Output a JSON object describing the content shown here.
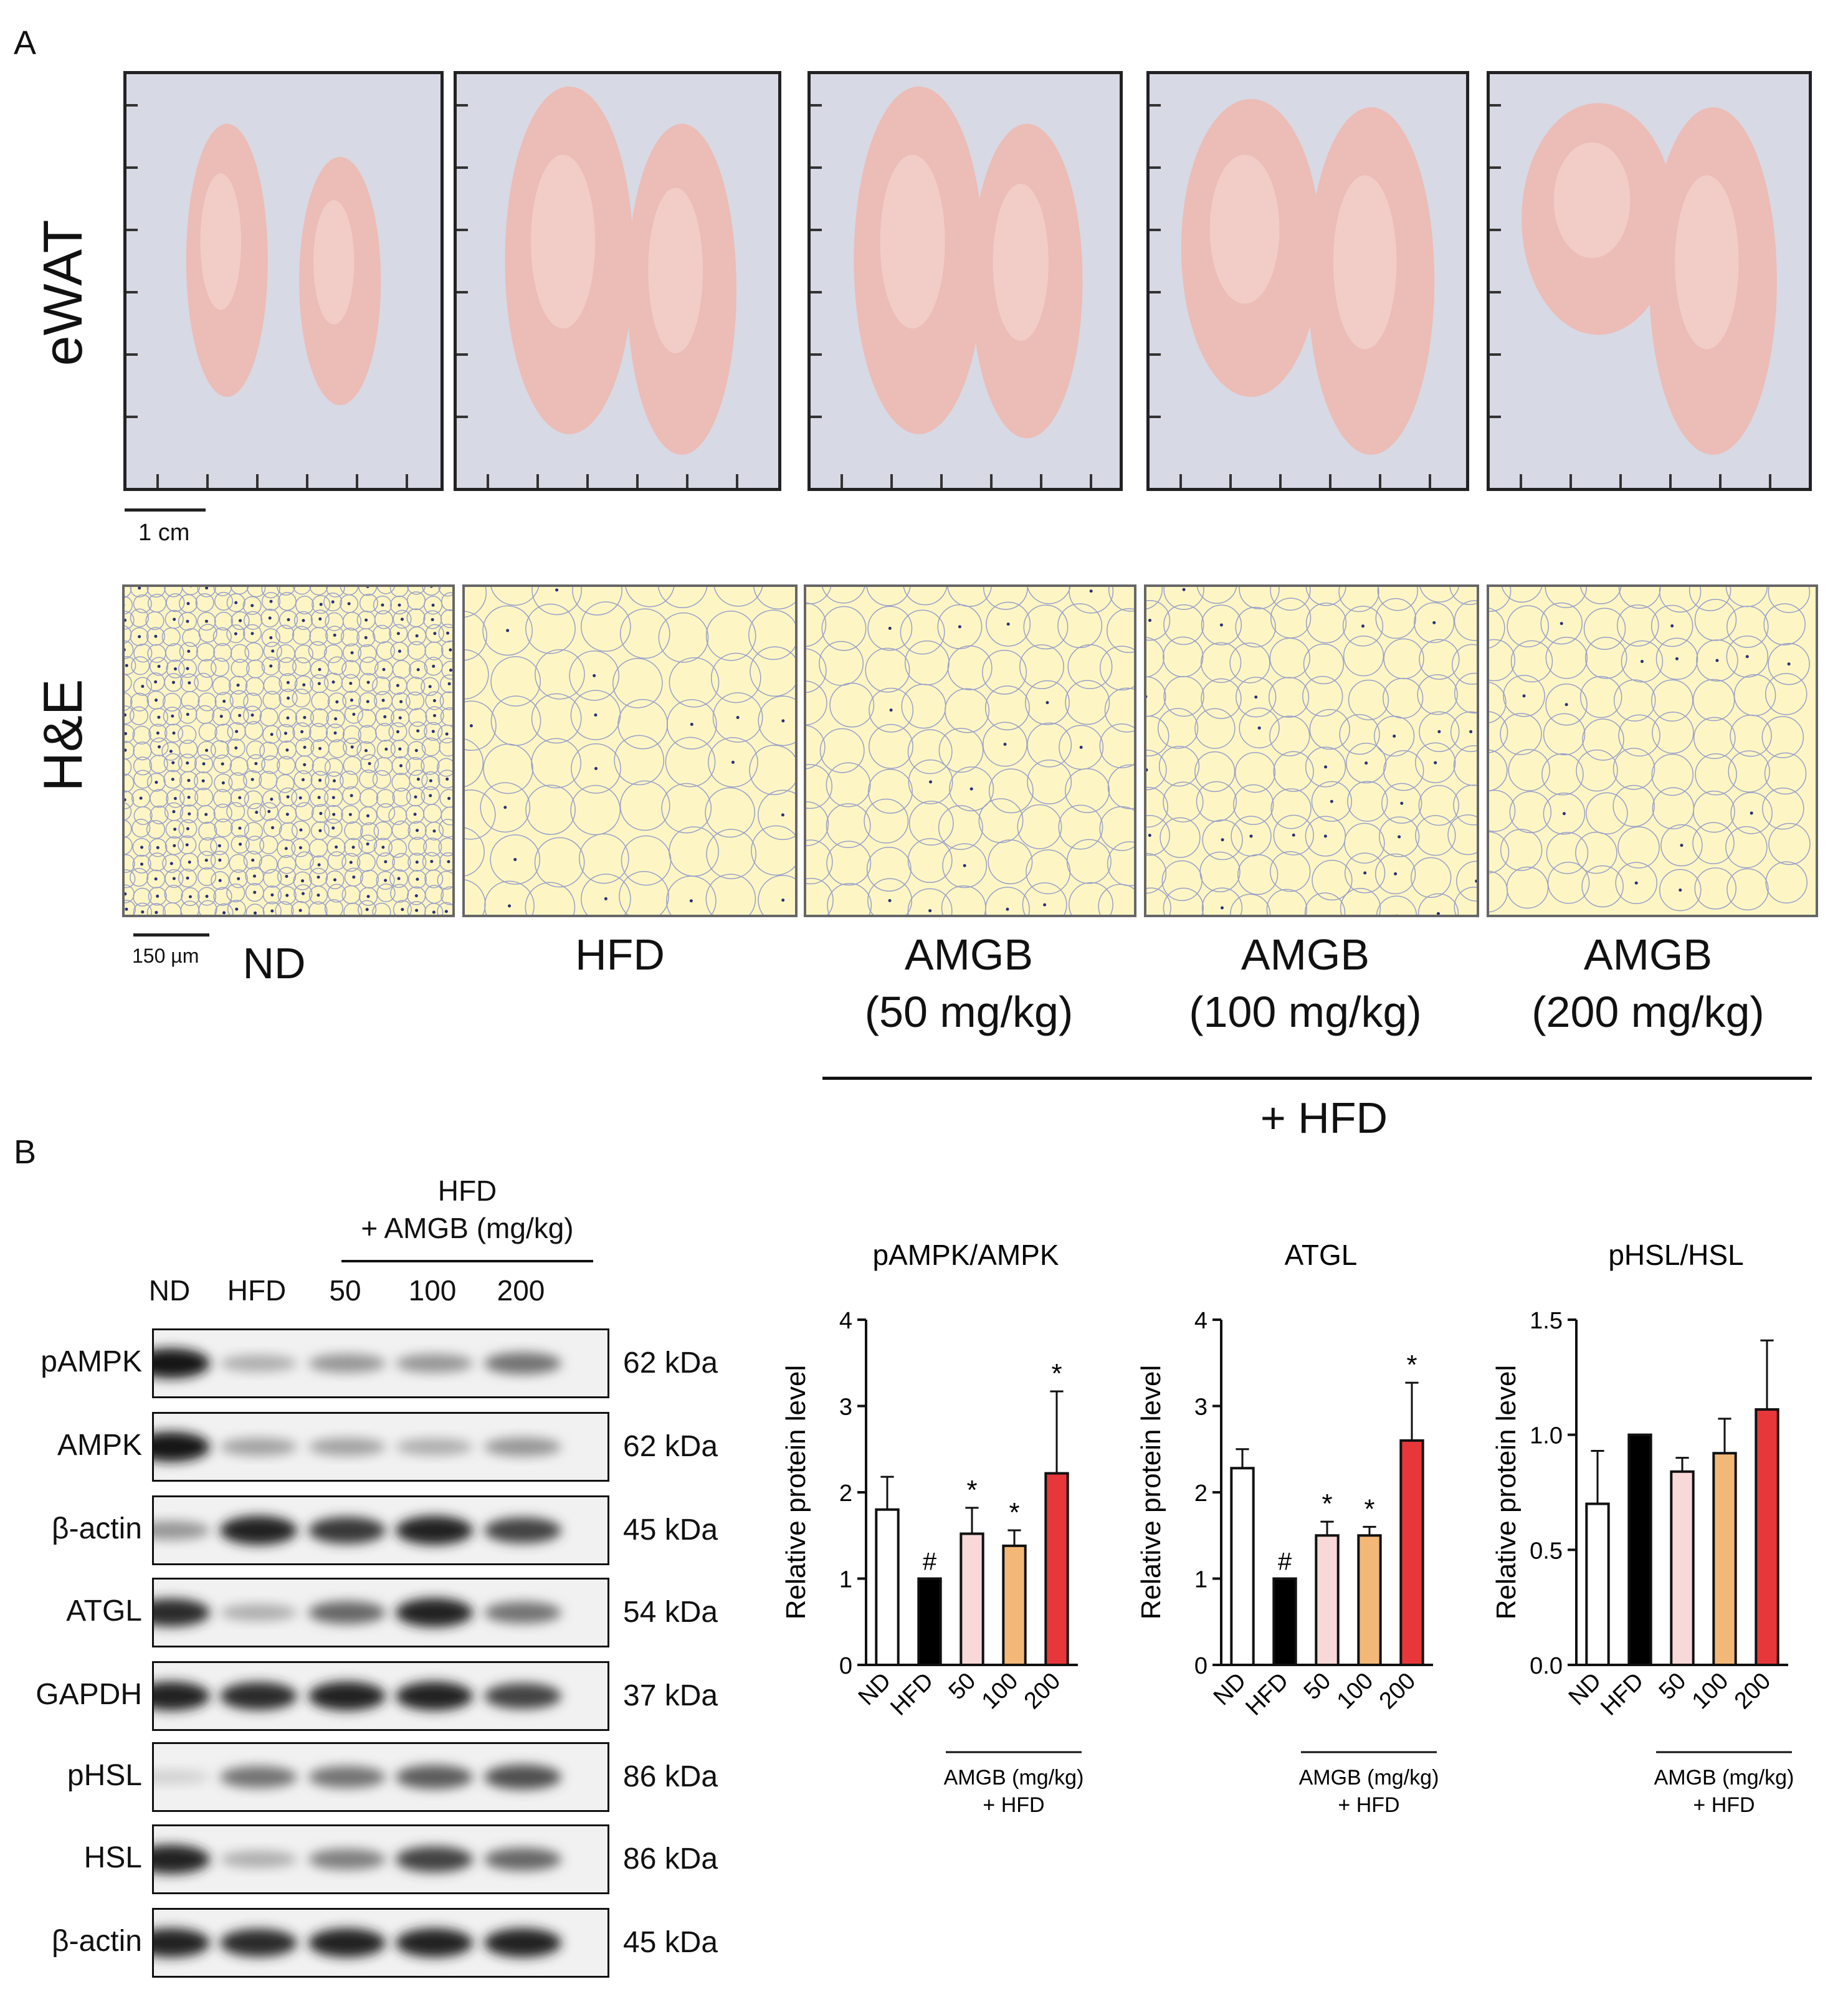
{
  "panel_a": {
    "letter": "A",
    "row_labels": {
      "top": "eWAT",
      "bottom": "H&E"
    },
    "scale_bar_photo": "1 cm",
    "scale_bar_histo": "150 µm",
    "groups": [
      "ND",
      "HFD",
      "AMGB\n(50 mg/kg)",
      "AMGB\n(100 mg/kg)",
      "AMGB\n(200 mg/kg)"
    ],
    "bracket_label": "+ HFD",
    "colors": {
      "tissue": "#ecbcb6",
      "tissue_highlight": "#f6d8d2",
      "photo_bg": "#d7d9e4",
      "histo_bg": "#fdf6c4",
      "nuclei": "#2a2f78"
    }
  },
  "panel_b": {
    "letter": "B",
    "header_top": "HFD",
    "header_bottom": "+ AMGB (mg/kg)",
    "lanes": [
      "ND",
      "HFD",
      "50",
      "100",
      "200"
    ],
    "blots": [
      {
        "name": "pAMPK",
        "kda": "62 kDa"
      },
      {
        "name": "AMPK",
        "kda": "62 kDa"
      },
      {
        "name": "β-actin",
        "kda": "45 kDa"
      },
      {
        "name": "ATGL",
        "kda": "54 kDa"
      },
      {
        "name": "GAPDH",
        "kda": "37 kDa"
      },
      {
        "name": "pHSL",
        "kda": "86 kDa"
      },
      {
        "name": "HSL",
        "kda": "86 kDa"
      },
      {
        "name": "β-actin",
        "kda": "45 kDa"
      }
    ],
    "band_intensity": [
      [
        1.0,
        0.35,
        0.45,
        0.45,
        0.6
      ],
      [
        1.0,
        0.4,
        0.4,
        0.35,
        0.45
      ],
      [
        0.45,
        0.95,
        0.85,
        0.95,
        0.8
      ],
      [
        0.9,
        0.35,
        0.65,
        0.95,
        0.6
      ],
      [
        0.95,
        0.9,
        0.95,
        0.95,
        0.8
      ],
      [
        0.2,
        0.6,
        0.6,
        0.7,
        0.75
      ],
      [
        0.95,
        0.35,
        0.55,
        0.8,
        0.65
      ],
      [
        0.95,
        0.9,
        0.95,
        0.95,
        0.95
      ]
    ]
  },
  "chart_data": [
    {
      "type": "bar",
      "title": "pAMPK/AMPK",
      "ylabel": "Relative protein level",
      "categories": [
        "ND",
        "HFD",
        "50",
        "100",
        "200"
      ],
      "values": [
        1.8,
        1.0,
        1.52,
        1.38,
        2.22
      ],
      "errors": [
        0.38,
        0.0,
        0.3,
        0.18,
        0.95
      ],
      "annotations": [
        "",
        "#",
        "*",
        "*",
        "*"
      ],
      "ylim": [
        0,
        4
      ],
      "yticks": [
        "0",
        "1",
        "2",
        "3",
        "4"
      ],
      "bracket_label": "AMGB (mg/kg)\n+ HFD",
      "bar_colors": [
        "#ffffff",
        "#000000",
        "#f8d8d8",
        "#f3b878",
        "#e8373a"
      ]
    },
    {
      "type": "bar",
      "title": "ATGL",
      "ylabel": "Relative protein level",
      "categories": [
        "ND",
        "HFD",
        "50",
        "100",
        "200"
      ],
      "values": [
        2.28,
        1.0,
        1.5,
        1.5,
        2.6
      ],
      "errors": [
        0.22,
        0.0,
        0.16,
        0.1,
        0.67
      ],
      "annotations": [
        "",
        "#",
        "*",
        "*",
        "*"
      ],
      "ylim": [
        0,
        4
      ],
      "yticks": [
        "0",
        "1",
        "2",
        "3",
        "4"
      ],
      "bracket_label": "AMGB (mg/kg)\n+ HFD",
      "bar_colors": [
        "#ffffff",
        "#000000",
        "#f8d8d8",
        "#f3b878",
        "#e8373a"
      ]
    },
    {
      "type": "bar",
      "title": "pHSL/HSL",
      "ylabel": "Relative protein level",
      "categories": [
        "ND",
        "HFD",
        "50",
        "100",
        "200"
      ],
      "values": [
        0.7,
        1.0,
        0.84,
        0.92,
        1.11
      ],
      "errors": [
        0.23,
        0.0,
        0.06,
        0.15,
        0.3
      ],
      "annotations": [
        "",
        "",
        "",
        "",
        ""
      ],
      "ylim": [
        0,
        1.5
      ],
      "yticks": [
        "0.0",
        "0.5",
        "1.0",
        "1.5"
      ],
      "bracket_label": "AMGB (mg/kg)\n+ HFD",
      "bar_colors": [
        "#ffffff",
        "#000000",
        "#f8d8d8",
        "#f3b878",
        "#e8373a"
      ]
    }
  ]
}
